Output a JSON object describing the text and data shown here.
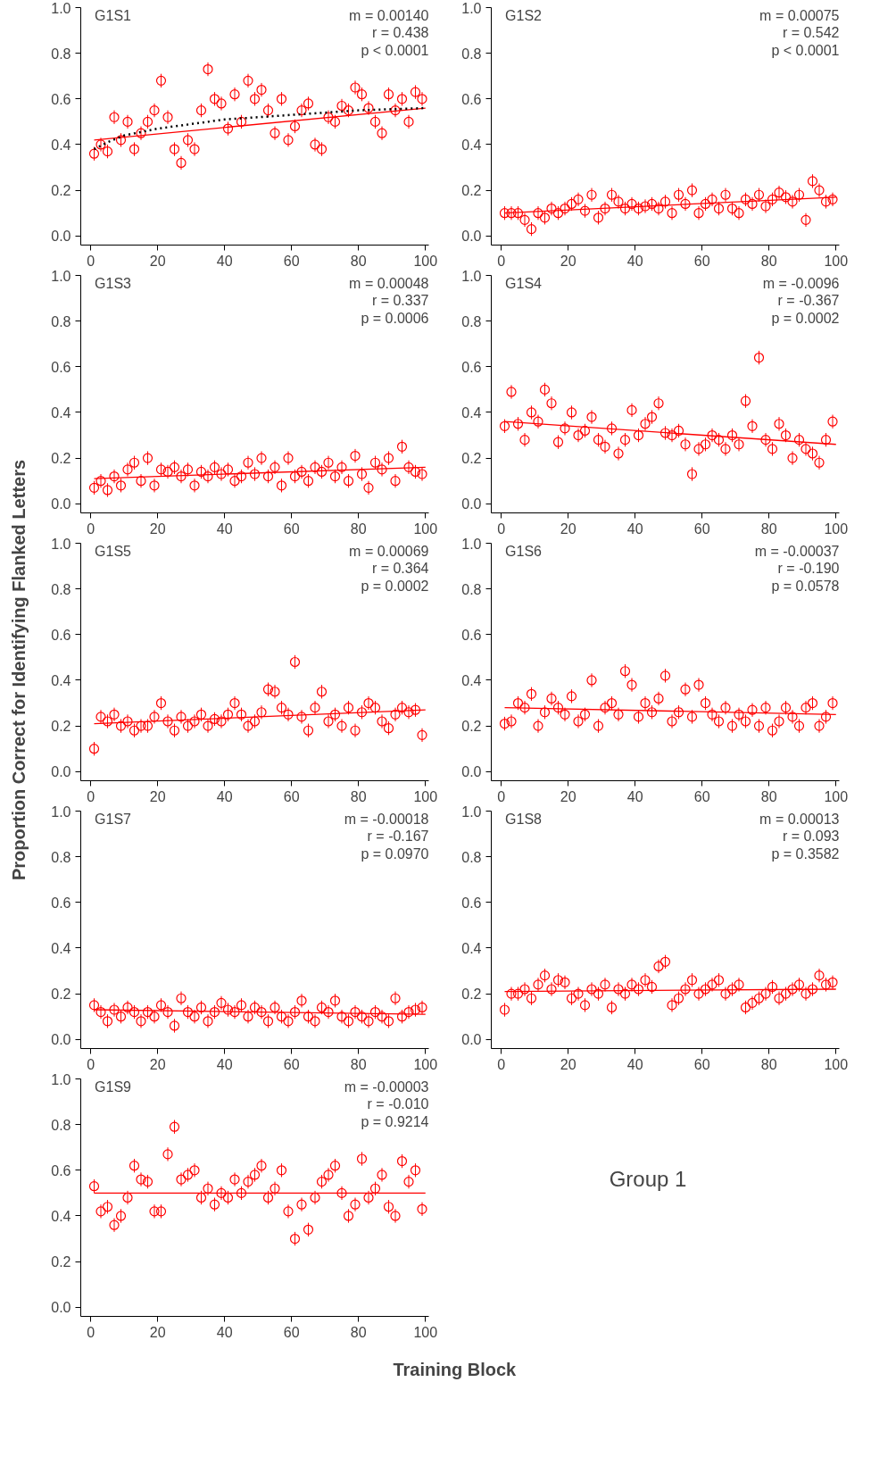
{
  "chart_data": [
    {
      "type": "scatter",
      "title": "G1S1",
      "annotations": [
        "m = 0.00140",
        "r = 0.438",
        "p < 0.0001"
      ],
      "xlim": [
        -3,
        101
      ],
      "ylim": [
        -0.04,
        1.0
      ],
      "xticks": [
        0,
        20,
        40,
        60,
        80,
        100
      ],
      "yticks": [
        {
          "value": 0.0,
          "label": "0.0"
        },
        {
          "value": 0.2,
          "label": "0.2"
        },
        {
          "value": 0.4,
          "label": "0.4"
        },
        {
          "value": 0.6,
          "label": "0.6"
        },
        {
          "value": 0.8,
          "label": "0.8"
        },
        {
          "value": 1.0,
          "label": "1.0"
        }
      ],
      "series": [
        {
          "color": "#ff0000",
          "marker": "circle",
          "x": [
            1,
            3,
            5,
            7,
            9,
            11,
            13,
            15,
            17,
            19,
            21,
            23,
            25,
            27,
            29,
            31,
            33,
            35,
            37,
            39,
            41,
            43,
            45,
            47,
            49,
            51,
            53,
            55,
            57,
            59,
            61,
            63,
            65,
            67,
            69,
            71,
            73,
            75,
            77,
            79,
            81,
            83,
            85,
            87,
            89,
            91,
            93,
            95,
            97,
            99
          ],
          "values": [
            0.36,
            0.4,
            0.37,
            0.52,
            0.42,
            0.5,
            0.38,
            0.45,
            0.5,
            0.55,
            0.68,
            0.52,
            0.38,
            0.32,
            0.42,
            0.38,
            0.55,
            0.73,
            0.6,
            0.58,
            0.47,
            0.62,
            0.5,
            0.68,
            0.6,
            0.64,
            0.55,
            0.45,
            0.6,
            0.42,
            0.48,
            0.55,
            0.58,
            0.4,
            0.38,
            0.52,
            0.5,
            0.57,
            0.55,
            0.65,
            0.62,
            0.56,
            0.5,
            0.45,
            0.62,
            0.55,
            0.6,
            0.5,
            0.63,
            0.6
          ],
          "errors": [
            0.03,
            0.03,
            0.03,
            0.03,
            0.03,
            0.03,
            0.03,
            0.03,
            0.03,
            0.03,
            0.03,
            0.03,
            0.03,
            0.03,
            0.03,
            0.03,
            0.03,
            0.03,
            0.03,
            0.03,
            0.03,
            0.03,
            0.03,
            0.03,
            0.03,
            0.03,
            0.03,
            0.03,
            0.03,
            0.03,
            0.03,
            0.03,
            0.03,
            0.03,
            0.03,
            0.03,
            0.03,
            0.03,
            0.03,
            0.03,
            0.03,
            0.03,
            0.03,
            0.03,
            0.03,
            0.03,
            0.03,
            0.03,
            0.03,
            0.03
          ]
        },
        {
          "type": "line",
          "color": "#ff0000",
          "line_style": "solid",
          "x": [
            1,
            100
          ],
          "values": [
            0.42,
            0.56
          ]
        },
        {
          "type": "line",
          "color": "#000000",
          "line_style": "dotted",
          "x": [
            1,
            5,
            10,
            20,
            30,
            40,
            50,
            60,
            70,
            80,
            90,
            100
          ],
          "values": [
            0.38,
            0.41,
            0.44,
            0.47,
            0.49,
            0.51,
            0.52,
            0.53,
            0.54,
            0.55,
            0.555,
            0.56
          ]
        }
      ]
    },
    {
      "type": "scatter",
      "title": "G1S2",
      "annotations": [
        "m = 0.00075",
        "r = 0.542",
        "p < 0.0001"
      ],
      "xlim": [
        -3,
        101
      ],
      "ylim": [
        -0.04,
        1.0
      ],
      "xticks": [
        0,
        20,
        40,
        60,
        80,
        100
      ],
      "yticks": [
        {
          "value": 0.0,
          "label": "0.0"
        },
        {
          "value": 0.2,
          "label": "0.2"
        },
        {
          "value": 0.4,
          "label": "0.4"
        },
        {
          "value": 0.6,
          "label": "0.6"
        },
        {
          "value": 0.8,
          "label": "0.8"
        },
        {
          "value": 1.0,
          "label": "1.0"
        }
      ],
      "series": [
        {
          "color": "#ff0000",
          "marker": "circle",
          "x": [
            1,
            3,
            5,
            7,
            9,
            11,
            13,
            15,
            17,
            19,
            21,
            23,
            25,
            27,
            29,
            31,
            33,
            35,
            37,
            39,
            41,
            43,
            45,
            47,
            49,
            51,
            53,
            55,
            57,
            59,
            61,
            63,
            65,
            67,
            69,
            71,
            73,
            75,
            77,
            79,
            81,
            83,
            85,
            87,
            89,
            91,
            93,
            95,
            97,
            99
          ],
          "values": [
            0.1,
            0.1,
            0.1,
            0.07,
            0.03,
            0.1,
            0.08,
            0.12,
            0.1,
            0.12,
            0.14,
            0.16,
            0.11,
            0.18,
            0.08,
            0.12,
            0.18,
            0.15,
            0.12,
            0.14,
            0.12,
            0.13,
            0.14,
            0.12,
            0.15,
            0.1,
            0.18,
            0.14,
            0.2,
            0.1,
            0.14,
            0.16,
            0.12,
            0.18,
            0.12,
            0.1,
            0.16,
            0.14,
            0.18,
            0.13,
            0.16,
            0.19,
            0.17,
            0.15,
            0.18,
            0.07,
            0.24,
            0.2,
            0.15,
            0.16
          ],
          "errors": [
            0.03,
            0.03,
            0.03,
            0.03,
            0.03,
            0.03,
            0.03,
            0.03,
            0.03,
            0.03,
            0.03,
            0.03,
            0.03,
            0.03,
            0.03,
            0.03,
            0.03,
            0.03,
            0.03,
            0.03,
            0.03,
            0.03,
            0.03,
            0.03,
            0.03,
            0.03,
            0.03,
            0.03,
            0.03,
            0.03,
            0.03,
            0.03,
            0.03,
            0.03,
            0.03,
            0.03,
            0.03,
            0.03,
            0.03,
            0.03,
            0.03,
            0.03,
            0.03,
            0.03,
            0.03,
            0.03,
            0.03,
            0.03,
            0.03,
            0.03
          ]
        },
        {
          "type": "line",
          "color": "#ff0000",
          "line_style": "solid",
          "x": [
            1,
            100
          ],
          "values": [
            0.1,
            0.17
          ]
        }
      ]
    },
    {
      "type": "scatter",
      "title": "G1S3",
      "annotations": [
        "m = 0.00048",
        "r = 0.337",
        "p = 0.0006"
      ],
      "xlim": [
        -3,
        101
      ],
      "ylim": [
        -0.04,
        1.0
      ],
      "xticks": [
        0,
        20,
        40,
        60,
        80,
        100
      ],
      "yticks": [
        {
          "value": 0.0,
          "label": "0.0"
        },
        {
          "value": 0.2,
          "label": "0.2"
        },
        {
          "value": 0.4,
          "label": "0.4"
        },
        {
          "value": 0.6,
          "label": "0.6"
        },
        {
          "value": 0.8,
          "label": "0.8"
        },
        {
          "value": 1.0,
          "label": "1.0"
        }
      ],
      "series": [
        {
          "color": "#ff0000",
          "marker": "circle",
          "x": [
            1,
            3,
            5,
            7,
            9,
            11,
            13,
            15,
            17,
            19,
            21,
            23,
            25,
            27,
            29,
            31,
            33,
            35,
            37,
            39,
            41,
            43,
            45,
            47,
            49,
            51,
            53,
            55,
            57,
            59,
            61,
            63,
            65,
            67,
            69,
            71,
            73,
            75,
            77,
            79,
            81,
            83,
            85,
            87,
            89,
            91,
            93,
            95,
            97,
            99
          ],
          "values": [
            0.07,
            0.1,
            0.06,
            0.12,
            0.08,
            0.15,
            0.18,
            0.1,
            0.2,
            0.08,
            0.15,
            0.14,
            0.16,
            0.12,
            0.15,
            0.08,
            0.14,
            0.12,
            0.16,
            0.13,
            0.15,
            0.1,
            0.12,
            0.18,
            0.13,
            0.2,
            0.12,
            0.16,
            0.08,
            0.2,
            0.12,
            0.14,
            0.1,
            0.16,
            0.14,
            0.18,
            0.12,
            0.16,
            0.1,
            0.21,
            0.13,
            0.07,
            0.18,
            0.15,
            0.2,
            0.1,
            0.25,
            0.16,
            0.14,
            0.13
          ],
          "errors": [
            0.03,
            0.03,
            0.03,
            0.03,
            0.03,
            0.03,
            0.03,
            0.03,
            0.03,
            0.03,
            0.03,
            0.03,
            0.03,
            0.03,
            0.03,
            0.03,
            0.03,
            0.03,
            0.03,
            0.03,
            0.03,
            0.03,
            0.03,
            0.03,
            0.03,
            0.03,
            0.03,
            0.03,
            0.03,
            0.03,
            0.03,
            0.03,
            0.03,
            0.03,
            0.03,
            0.03,
            0.03,
            0.03,
            0.03,
            0.03,
            0.03,
            0.03,
            0.03,
            0.03,
            0.03,
            0.03,
            0.03,
            0.03,
            0.03,
            0.03
          ]
        },
        {
          "type": "line",
          "color": "#ff0000",
          "line_style": "solid",
          "x": [
            1,
            100
          ],
          "values": [
            0.11,
            0.16
          ]
        }
      ]
    },
    {
      "type": "scatter",
      "title": "G1S4",
      "annotations": [
        "m = -0.0096",
        "r = -0.367",
        "p = 0.0002"
      ],
      "xlim": [
        -3,
        101
      ],
      "ylim": [
        -0.04,
        1.0
      ],
      "xticks": [
        0,
        20,
        40,
        60,
        80,
        100
      ],
      "yticks": [
        {
          "value": 0.0,
          "label": "0.0"
        },
        {
          "value": 0.2,
          "label": "0.2"
        },
        {
          "value": 0.4,
          "label": "0.4"
        },
        {
          "value": 0.6,
          "label": "0.6"
        },
        {
          "value": 0.8,
          "label": "0.8"
        },
        {
          "value": 1.0,
          "label": "1.0"
        }
      ],
      "series": [
        {
          "color": "#ff0000",
          "marker": "circle",
          "x": [
            1,
            3,
            5,
            7,
            9,
            11,
            13,
            15,
            17,
            19,
            21,
            23,
            25,
            27,
            29,
            31,
            33,
            35,
            37,
            39,
            41,
            43,
            45,
            47,
            49,
            51,
            53,
            55,
            57,
            59,
            61,
            63,
            65,
            67,
            69,
            71,
            73,
            75,
            77,
            79,
            81,
            83,
            85,
            87,
            89,
            91,
            93,
            95,
            97,
            99
          ],
          "values": [
            0.34,
            0.49,
            0.35,
            0.28,
            0.4,
            0.36,
            0.5,
            0.44,
            0.27,
            0.33,
            0.4,
            0.3,
            0.32,
            0.38,
            0.28,
            0.25,
            0.33,
            0.22,
            0.28,
            0.41,
            0.3,
            0.35,
            0.38,
            0.44,
            0.31,
            0.3,
            0.32,
            0.26,
            0.13,
            0.24,
            0.26,
            0.3,
            0.28,
            0.24,
            0.3,
            0.26,
            0.45,
            0.34,
            0.64,
            0.28,
            0.24,
            0.35,
            0.3,
            0.2,
            0.28,
            0.24,
            0.22,
            0.18,
            0.28,
            0.36
          ],
          "errors": [
            0.03,
            0.03,
            0.03,
            0.03,
            0.03,
            0.03,
            0.03,
            0.03,
            0.03,
            0.03,
            0.03,
            0.03,
            0.03,
            0.03,
            0.03,
            0.03,
            0.03,
            0.03,
            0.03,
            0.03,
            0.03,
            0.03,
            0.03,
            0.03,
            0.03,
            0.03,
            0.03,
            0.03,
            0.03,
            0.03,
            0.03,
            0.03,
            0.03,
            0.03,
            0.03,
            0.03,
            0.03,
            0.03,
            0.03,
            0.03,
            0.03,
            0.03,
            0.03,
            0.03,
            0.03,
            0.03,
            0.03,
            0.03,
            0.03,
            0.03
          ]
        },
        {
          "type": "line",
          "color": "#ff0000",
          "line_style": "solid",
          "x": [
            1,
            100
          ],
          "values": [
            0.36,
            0.26
          ]
        }
      ]
    },
    {
      "type": "scatter",
      "title": "G1S5",
      "annotations": [
        "m = 0.00069",
        "r = 0.364",
        "p = 0.0002"
      ],
      "xlim": [
        -3,
        101
      ],
      "ylim": [
        -0.04,
        1.0
      ],
      "xticks": [
        0,
        20,
        40,
        60,
        80,
        100
      ],
      "yticks": [
        {
          "value": 0.0,
          "label": "0.0"
        },
        {
          "value": 0.2,
          "label": "0.2"
        },
        {
          "value": 0.4,
          "label": "0.4"
        },
        {
          "value": 0.6,
          "label": "0.6"
        },
        {
          "value": 0.8,
          "label": "0.8"
        },
        {
          "value": 1.0,
          "label": "1.0"
        }
      ],
      "series": [
        {
          "color": "#ff0000",
          "marker": "circle",
          "x": [
            1,
            3,
            5,
            7,
            9,
            11,
            13,
            15,
            17,
            19,
            21,
            23,
            25,
            27,
            29,
            31,
            33,
            35,
            37,
            39,
            41,
            43,
            45,
            47,
            49,
            51,
            53,
            55,
            57,
            59,
            61,
            63,
            65,
            67,
            69,
            71,
            73,
            75,
            77,
            79,
            81,
            83,
            85,
            87,
            89,
            91,
            93,
            95,
            97,
            99
          ],
          "values": [
            0.1,
            0.24,
            0.22,
            0.25,
            0.2,
            0.22,
            0.18,
            0.2,
            0.2,
            0.24,
            0.3,
            0.22,
            0.18,
            0.24,
            0.2,
            0.22,
            0.25,
            0.2,
            0.23,
            0.22,
            0.25,
            0.3,
            0.25,
            0.2,
            0.22,
            0.26,
            0.36,
            0.35,
            0.28,
            0.25,
            0.48,
            0.24,
            0.18,
            0.28,
            0.35,
            0.22,
            0.25,
            0.2,
            0.28,
            0.18,
            0.26,
            0.3,
            0.28,
            0.22,
            0.19,
            0.25,
            0.28,
            0.26,
            0.27,
            0.16
          ],
          "errors": [
            0.03,
            0.03,
            0.03,
            0.03,
            0.03,
            0.03,
            0.03,
            0.03,
            0.03,
            0.03,
            0.03,
            0.03,
            0.03,
            0.03,
            0.03,
            0.03,
            0.03,
            0.03,
            0.03,
            0.03,
            0.03,
            0.03,
            0.03,
            0.03,
            0.03,
            0.03,
            0.03,
            0.03,
            0.03,
            0.03,
            0.03,
            0.03,
            0.03,
            0.03,
            0.03,
            0.03,
            0.03,
            0.03,
            0.03,
            0.03,
            0.03,
            0.03,
            0.03,
            0.03,
            0.03,
            0.03,
            0.03,
            0.03,
            0.03,
            0.03
          ]
        },
        {
          "type": "line",
          "color": "#ff0000",
          "line_style": "solid",
          "x": [
            1,
            100
          ],
          "values": [
            0.21,
            0.27
          ]
        }
      ]
    },
    {
      "type": "scatter",
      "title": "G1S6",
      "annotations": [
        "m = -0.00037",
        "r = -0.190",
        "p = 0.0578"
      ],
      "xlim": [
        -3,
        101
      ],
      "ylim": [
        -0.04,
        1.0
      ],
      "xticks": [
        0,
        20,
        40,
        60,
        80,
        100
      ],
      "yticks": [
        {
          "value": 0.0,
          "label": "0.0"
        },
        {
          "value": 0.2,
          "label": "0.2"
        },
        {
          "value": 0.4,
          "label": "0.4"
        },
        {
          "value": 0.6,
          "label": "0.6"
        },
        {
          "value": 0.8,
          "label": "0.8"
        },
        {
          "value": 1.0,
          "label": "1.0"
        }
      ],
      "series": [
        {
          "color": "#ff0000",
          "marker": "circle",
          "x": [
            1,
            3,
            5,
            7,
            9,
            11,
            13,
            15,
            17,
            19,
            21,
            23,
            25,
            27,
            29,
            31,
            33,
            35,
            37,
            39,
            41,
            43,
            45,
            47,
            49,
            51,
            53,
            55,
            57,
            59,
            61,
            63,
            65,
            67,
            69,
            71,
            73,
            75,
            77,
            79,
            81,
            83,
            85,
            87,
            89,
            91,
            93,
            95,
            97,
            99
          ],
          "values": [
            0.21,
            0.22,
            0.3,
            0.28,
            0.34,
            0.2,
            0.26,
            0.32,
            0.28,
            0.25,
            0.33,
            0.22,
            0.25,
            0.4,
            0.2,
            0.28,
            0.3,
            0.25,
            0.44,
            0.38,
            0.24,
            0.3,
            0.26,
            0.32,
            0.42,
            0.22,
            0.26,
            0.36,
            0.24,
            0.38,
            0.3,
            0.25,
            0.22,
            0.28,
            0.2,
            0.25,
            0.22,
            0.27,
            0.2,
            0.28,
            0.18,
            0.22,
            0.28,
            0.24,
            0.2,
            0.28,
            0.3,
            0.2,
            0.24,
            0.3
          ],
          "errors": [
            0.03,
            0.03,
            0.03,
            0.03,
            0.03,
            0.03,
            0.03,
            0.03,
            0.03,
            0.03,
            0.03,
            0.03,
            0.03,
            0.03,
            0.03,
            0.03,
            0.03,
            0.03,
            0.03,
            0.03,
            0.03,
            0.03,
            0.03,
            0.03,
            0.03,
            0.03,
            0.03,
            0.03,
            0.03,
            0.03,
            0.03,
            0.03,
            0.03,
            0.03,
            0.03,
            0.03,
            0.03,
            0.03,
            0.03,
            0.03,
            0.03,
            0.03,
            0.03,
            0.03,
            0.03,
            0.03,
            0.03,
            0.03,
            0.03,
            0.03
          ]
        },
        {
          "type": "line",
          "color": "#ff0000",
          "line_style": "solid",
          "x": [
            1,
            100
          ],
          "values": [
            0.28,
            0.25
          ]
        }
      ]
    },
    {
      "type": "scatter",
      "title": "G1S7",
      "annotations": [
        "m = -0.00018",
        "r = -0.167",
        "p = 0.0970"
      ],
      "xlim": [
        -3,
        101
      ],
      "ylim": [
        -0.04,
        1.0
      ],
      "xticks": [
        0,
        20,
        40,
        60,
        80,
        100
      ],
      "yticks": [
        {
          "value": 0.0,
          "label": "0.0"
        },
        {
          "value": 0.2,
          "label": "0.2"
        },
        {
          "value": 0.4,
          "label": "0.4"
        },
        {
          "value": 0.6,
          "label": "0.6"
        },
        {
          "value": 0.8,
          "label": "0.8"
        },
        {
          "value": 1.0,
          "label": "1.0"
        }
      ],
      "series": [
        {
          "color": "#ff0000",
          "marker": "circle",
          "x": [
            1,
            3,
            5,
            7,
            9,
            11,
            13,
            15,
            17,
            19,
            21,
            23,
            25,
            27,
            29,
            31,
            33,
            35,
            37,
            39,
            41,
            43,
            45,
            47,
            49,
            51,
            53,
            55,
            57,
            59,
            61,
            63,
            65,
            67,
            69,
            71,
            73,
            75,
            77,
            79,
            81,
            83,
            85,
            87,
            89,
            91,
            93,
            95,
            97,
            99
          ],
          "values": [
            0.15,
            0.12,
            0.08,
            0.13,
            0.1,
            0.14,
            0.12,
            0.08,
            0.12,
            0.1,
            0.15,
            0.12,
            0.06,
            0.18,
            0.12,
            0.1,
            0.14,
            0.08,
            0.12,
            0.16,
            0.13,
            0.12,
            0.15,
            0.1,
            0.14,
            0.12,
            0.08,
            0.14,
            0.1,
            0.08,
            0.12,
            0.17,
            0.1,
            0.08,
            0.14,
            0.12,
            0.17,
            0.1,
            0.08,
            0.12,
            0.1,
            0.08,
            0.12,
            0.1,
            0.08,
            0.18,
            0.1,
            0.12,
            0.13,
            0.14
          ],
          "errors": [
            0.03,
            0.03,
            0.03,
            0.03,
            0.03,
            0.03,
            0.03,
            0.03,
            0.03,
            0.03,
            0.03,
            0.03,
            0.03,
            0.03,
            0.03,
            0.03,
            0.03,
            0.03,
            0.03,
            0.03,
            0.03,
            0.03,
            0.03,
            0.03,
            0.03,
            0.03,
            0.03,
            0.03,
            0.03,
            0.03,
            0.03,
            0.03,
            0.03,
            0.03,
            0.03,
            0.03,
            0.03,
            0.03,
            0.03,
            0.03,
            0.03,
            0.03,
            0.03,
            0.03,
            0.03,
            0.03,
            0.03,
            0.03,
            0.03,
            0.03
          ]
        },
        {
          "type": "line",
          "color": "#ff0000",
          "line_style": "solid",
          "x": [
            1,
            100
          ],
          "values": [
            0.13,
            0.11
          ]
        }
      ]
    },
    {
      "type": "scatter",
      "title": "G1S8",
      "annotations": [
        "m = 0.00013",
        "r = 0.093",
        "p = 0.3582"
      ],
      "xlim": [
        -3,
        101
      ],
      "ylim": [
        -0.04,
        1.0
      ],
      "xticks": [
        0,
        20,
        40,
        60,
        80,
        100
      ],
      "yticks": [
        {
          "value": 0.0,
          "label": "0.0"
        },
        {
          "value": 0.2,
          "label": "0.2"
        },
        {
          "value": 0.4,
          "label": "0.4"
        },
        {
          "value": 0.6,
          "label": "0.6"
        },
        {
          "value": 0.8,
          "label": "0.8"
        },
        {
          "value": 1.0,
          "label": "1.0"
        }
      ],
      "series": [
        {
          "color": "#ff0000",
          "marker": "circle",
          "x": [
            1,
            3,
            5,
            7,
            9,
            11,
            13,
            15,
            17,
            19,
            21,
            23,
            25,
            27,
            29,
            31,
            33,
            35,
            37,
            39,
            41,
            43,
            45,
            47,
            49,
            51,
            53,
            55,
            57,
            59,
            61,
            63,
            65,
            67,
            69,
            71,
            73,
            75,
            77,
            79,
            81,
            83,
            85,
            87,
            89,
            91,
            93,
            95,
            97,
            99
          ],
          "values": [
            0.13,
            0.2,
            0.2,
            0.22,
            0.18,
            0.24,
            0.28,
            0.22,
            0.26,
            0.25,
            0.18,
            0.2,
            0.15,
            0.22,
            0.2,
            0.24,
            0.14,
            0.22,
            0.2,
            0.24,
            0.22,
            0.26,
            0.23,
            0.32,
            0.34,
            0.15,
            0.18,
            0.22,
            0.26,
            0.2,
            0.22,
            0.24,
            0.26,
            0.2,
            0.22,
            0.24,
            0.14,
            0.16,
            0.18,
            0.2,
            0.23,
            0.18,
            0.2,
            0.22,
            0.24,
            0.2,
            0.22,
            0.28,
            0.24,
            0.25
          ],
          "errors": [
            0.03,
            0.03,
            0.03,
            0.03,
            0.03,
            0.03,
            0.03,
            0.03,
            0.03,
            0.03,
            0.03,
            0.03,
            0.03,
            0.03,
            0.03,
            0.03,
            0.03,
            0.03,
            0.03,
            0.03,
            0.03,
            0.03,
            0.03,
            0.03,
            0.03,
            0.03,
            0.03,
            0.03,
            0.03,
            0.03,
            0.03,
            0.03,
            0.03,
            0.03,
            0.03,
            0.03,
            0.03,
            0.03,
            0.03,
            0.03,
            0.03,
            0.03,
            0.03,
            0.03,
            0.03,
            0.03,
            0.03,
            0.03,
            0.03,
            0.03
          ]
        },
        {
          "type": "line",
          "color": "#ff0000",
          "line_style": "solid",
          "x": [
            1,
            100
          ],
          "values": [
            0.21,
            0.22
          ]
        }
      ]
    },
    {
      "type": "scatter",
      "title": "G1S9",
      "annotations": [
        "m = -0.00003",
        "r = -0.010",
        "p = 0.9214"
      ],
      "xlim": [
        -3,
        101
      ],
      "ylim": [
        -0.04,
        1.0
      ],
      "xticks": [
        0,
        20,
        40,
        60,
        80,
        100
      ],
      "yticks": [
        {
          "value": 0.0,
          "label": "0.0"
        },
        {
          "value": 0.2,
          "label": "0.2"
        },
        {
          "value": 0.4,
          "label": "0.4"
        },
        {
          "value": 0.6,
          "label": "0.6"
        },
        {
          "value": 0.8,
          "label": "0.8"
        },
        {
          "value": 1.0,
          "label": "1.0"
        }
      ],
      "series": [
        {
          "color": "#ff0000",
          "marker": "circle",
          "x": [
            1,
            3,
            5,
            7,
            9,
            11,
            13,
            15,
            17,
            19,
            21,
            23,
            25,
            27,
            29,
            31,
            33,
            35,
            37,
            39,
            41,
            43,
            45,
            47,
            49,
            51,
            53,
            55,
            57,
            59,
            61,
            63,
            65,
            67,
            69,
            71,
            73,
            75,
            77,
            79,
            81,
            83,
            85,
            87,
            89,
            91,
            93,
            95,
            97,
            99
          ],
          "values": [
            0.53,
            0.42,
            0.44,
            0.36,
            0.4,
            0.48,
            0.62,
            0.56,
            0.55,
            0.42,
            0.42,
            0.67,
            0.79,
            0.56,
            0.58,
            0.6,
            0.48,
            0.52,
            0.45,
            0.5,
            0.48,
            0.56,
            0.5,
            0.55,
            0.58,
            0.62,
            0.48,
            0.52,
            0.6,
            0.42,
            0.3,
            0.45,
            0.34,
            0.48,
            0.55,
            0.58,
            0.62,
            0.5,
            0.4,
            0.45,
            0.65,
            0.48,
            0.52,
            0.58,
            0.44,
            0.4,
            0.64,
            0.55,
            0.6,
            0.43
          ],
          "errors": [
            0.03,
            0.03,
            0.03,
            0.03,
            0.03,
            0.03,
            0.03,
            0.03,
            0.03,
            0.03,
            0.03,
            0.03,
            0.03,
            0.03,
            0.03,
            0.03,
            0.03,
            0.03,
            0.03,
            0.03,
            0.03,
            0.03,
            0.03,
            0.03,
            0.03,
            0.03,
            0.03,
            0.03,
            0.03,
            0.03,
            0.03,
            0.03,
            0.03,
            0.03,
            0.03,
            0.03,
            0.03,
            0.03,
            0.03,
            0.03,
            0.03,
            0.03,
            0.03,
            0.03,
            0.03,
            0.03,
            0.03,
            0.03,
            0.03,
            0.03
          ]
        },
        {
          "type": "line",
          "color": "#ff0000",
          "line_style": "solid",
          "x": [
            1,
            100
          ],
          "values": [
            0.5,
            0.5
          ]
        }
      ]
    },
    {
      "type": "other",
      "title": "Group 1",
      "xlabel": "Training Block",
      "ylabel": "Proportion Correct for Identifying Flanked Letters"
    }
  ]
}
